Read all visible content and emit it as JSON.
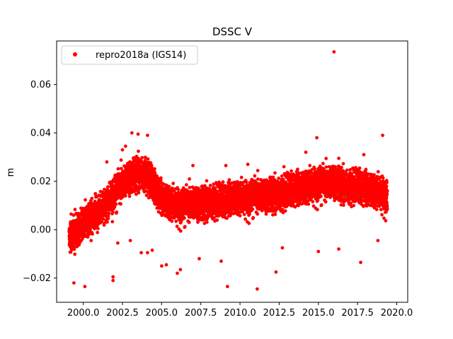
{
  "chart_data": {
    "type": "scatter",
    "title": "DSSC V",
    "xlabel": "",
    "ylabel": "m",
    "xlim": [
      1998.3,
      2020.7
    ],
    "ylim": [
      -0.03,
      0.078
    ],
    "xticks": [
      2000.0,
      2002.5,
      2005.0,
      2007.5,
      2010.0,
      2012.5,
      2015.0,
      2017.5,
      2020.0
    ],
    "xtick_labels": [
      "2000.0",
      "2002.5",
      "2005.0",
      "2007.5",
      "2010.0",
      "2012.5",
      "2015.0",
      "2017.5",
      "2020.0"
    ],
    "yticks": [
      -0.02,
      0.0,
      0.02,
      0.04,
      0.06
    ],
    "ytick_labels": [
      "−0.02",
      "0.00",
      "0.02",
      "0.04",
      "0.06"
    ],
    "grid": false,
    "legend_position": "top-left",
    "series": [
      {
        "name": "repro2018a (IGS14)",
        "color": "#ff0000",
        "marker": "circle",
        "trend": [
          [
            1999.1,
            -0.003
          ],
          [
            1999.6,
            0.0
          ],
          [
            2000.0,
            0.002
          ],
          [
            2000.5,
            0.005
          ],
          [
            2001.0,
            0.008
          ],
          [
            2001.5,
            0.011
          ],
          [
            2002.0,
            0.015
          ],
          [
            2002.5,
            0.019
          ],
          [
            2003.0,
            0.022
          ],
          [
            2003.5,
            0.024
          ],
          [
            2004.0,
            0.023
          ],
          [
            2004.5,
            0.018
          ],
          [
            2005.0,
            0.013
          ],
          [
            2005.5,
            0.011
          ],
          [
            2006.0,
            0.01
          ],
          [
            2006.5,
            0.01
          ],
          [
            2007.0,
            0.011
          ],
          [
            2007.5,
            0.011
          ],
          [
            2008.0,
            0.012
          ],
          [
            2008.5,
            0.012
          ],
          [
            2009.0,
            0.012
          ],
          [
            2009.5,
            0.013
          ],
          [
            2010.0,
            0.013
          ],
          [
            2010.5,
            0.013
          ],
          [
            2011.0,
            0.014
          ],
          [
            2011.5,
            0.014
          ],
          [
            2012.0,
            0.015
          ],
          [
            2012.5,
            0.015
          ],
          [
            2013.0,
            0.016
          ],
          [
            2013.5,
            0.017
          ],
          [
            2014.0,
            0.017
          ],
          [
            2014.5,
            0.018
          ],
          [
            2015.0,
            0.019
          ],
          [
            2015.5,
            0.019
          ],
          [
            2016.0,
            0.02
          ],
          [
            2016.5,
            0.019
          ],
          [
            2017.0,
            0.018
          ],
          [
            2017.5,
            0.018
          ],
          [
            2018.0,
            0.017
          ],
          [
            2018.5,
            0.016
          ],
          [
            2019.0,
            0.015
          ],
          [
            2019.4,
            0.014
          ]
        ],
        "spread": 0.0055,
        "x_range": [
          1999.1,
          2019.4
        ],
        "outliers": [
          [
            2016.0,
            0.0735
          ],
          [
            2011.1,
            -0.0245
          ],
          [
            2009.2,
            -0.0235
          ],
          [
            2000.1,
            -0.0235
          ],
          [
            1999.4,
            -0.022
          ],
          [
            2001.9,
            -0.021
          ],
          [
            2001.9,
            -0.0195
          ],
          [
            2012.3,
            -0.0175
          ],
          [
            2006.0,
            -0.018
          ],
          [
            2006.2,
            -0.0165
          ],
          [
            2005.0,
            -0.015
          ],
          [
            2005.3,
            -0.0145
          ],
          [
            2008.8,
            -0.013
          ],
          [
            2017.7,
            -0.0135
          ],
          [
            2007.4,
            -0.012
          ],
          [
            2003.7,
            -0.0095
          ],
          [
            2004.1,
            -0.0095
          ],
          [
            2015.0,
            -0.009
          ],
          [
            2016.3,
            -0.008
          ],
          [
            2012.7,
            -0.0075
          ],
          [
            2019.1,
            0.039
          ],
          [
            2014.9,
            0.038
          ],
          [
            2003.1,
            0.04
          ],
          [
            2003.5,
            0.0395
          ],
          [
            2004.1,
            0.039
          ],
          [
            2002.7,
            0.0345
          ],
          [
            2002.5,
            0.033
          ],
          [
            2014.2,
            0.032
          ],
          [
            2017.9,
            0.031
          ],
          [
            2001.5,
            0.028
          ],
          [
            2007.0,
            0.0265
          ],
          [
            2010.5,
            0.027
          ],
          [
            2012.8,
            0.026
          ],
          [
            2016.3,
            0.0295
          ],
          [
            2002.2,
            -0.0055
          ],
          [
            2000.5,
            -0.0045
          ],
          [
            2003.0,
            -0.0045
          ],
          [
            2004.4,
            -0.0085
          ],
          [
            2009.1,
            0.0265
          ],
          [
            2018.8,
            -0.0045
          ]
        ]
      }
    ]
  }
}
